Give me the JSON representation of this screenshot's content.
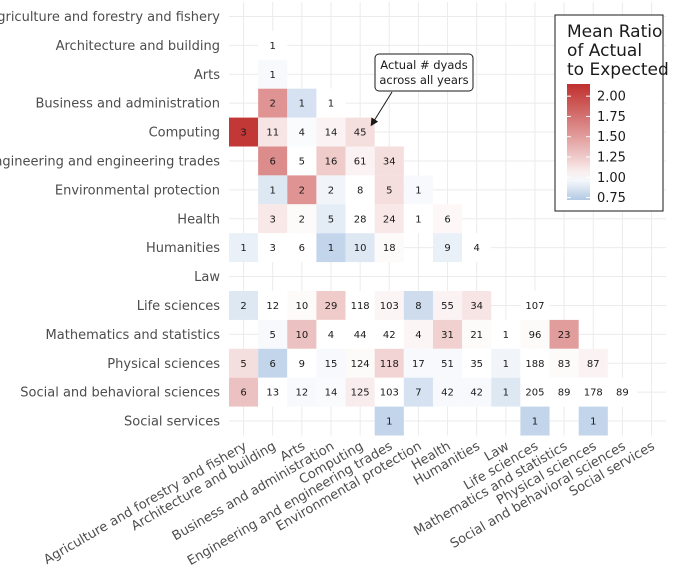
{
  "chart_data": {
    "type": "heatmap",
    "categories": [
      "Agriculture and forestry and fishery",
      "Architecture and building",
      "Arts",
      "Business and administration",
      "Computing",
      "Engineering and engineering trades",
      "Environmental protection",
      "Health",
      "Humanities",
      "Law",
      "Life sciences",
      "Mathematics and statistics",
      "Physical sciences",
      "Social and behavioral sciences",
      "Social services"
    ],
    "cells": [
      {
        "row": "Architecture and building",
        "col": "Architecture and building",
        "count": "1",
        "ratio": 1.0
      },
      {
        "row": "Arts",
        "col": "Architecture and building",
        "count": "1",
        "ratio": 0.97
      },
      {
        "row": "Business and administration",
        "col": "Architecture and building",
        "count": "2",
        "ratio": 1.55
      },
      {
        "row": "Business and administration",
        "col": "Arts",
        "count": "1",
        "ratio": 0.85
      },
      {
        "row": "Business and administration",
        "col": "Business and administration",
        "count": "1",
        "ratio": 1.0
      },
      {
        "row": "Computing",
        "col": "Agriculture and forestry and fishery",
        "count": "3",
        "ratio": 2.1
      },
      {
        "row": "Computing",
        "col": "Architecture and building",
        "count": "11",
        "ratio": 1.12
      },
      {
        "row": "Computing",
        "col": "Arts",
        "count": "4",
        "ratio": 0.98
      },
      {
        "row": "Computing",
        "col": "Business and administration",
        "count": "14",
        "ratio": 1.05
      },
      {
        "row": "Computing",
        "col": "Computing",
        "count": "45",
        "ratio": 1.15
      },
      {
        "row": "Engineering and engineering trades",
        "col": "Architecture and building",
        "count": "6",
        "ratio": 1.6
      },
      {
        "row": "Engineering and engineering trades",
        "col": "Arts",
        "count": "5",
        "ratio": 1.0
      },
      {
        "row": "Engineering and engineering trades",
        "col": "Business and administration",
        "count": "16",
        "ratio": 1.25
      },
      {
        "row": "Engineering and engineering trades",
        "col": "Computing",
        "count": "61",
        "ratio": 1.05
      },
      {
        "row": "Engineering and engineering trades",
        "col": "Engineering and engineering trades",
        "count": "34",
        "ratio": 1.15
      },
      {
        "row": "Environmental protection",
        "col": "Architecture and building",
        "count": "1",
        "ratio": 0.88
      },
      {
        "row": "Environmental protection",
        "col": "Arts",
        "count": "2",
        "ratio": 1.55
      },
      {
        "row": "Environmental protection",
        "col": "Business and administration",
        "count": "2",
        "ratio": 0.95
      },
      {
        "row": "Environmental protection",
        "col": "Computing",
        "count": "8",
        "ratio": 1.0
      },
      {
        "row": "Environmental protection",
        "col": "Engineering and engineering trades",
        "count": "5",
        "ratio": 1.15
      },
      {
        "row": "Environmental protection",
        "col": "Environmental protection",
        "count": "1",
        "ratio": 0.97
      },
      {
        "row": "Health",
        "col": "Architecture and building",
        "count": "3",
        "ratio": 1.1
      },
      {
        "row": "Health",
        "col": "Arts",
        "count": "2",
        "ratio": 1.02
      },
      {
        "row": "Health",
        "col": "Business and administration",
        "count": "5",
        "ratio": 0.9
      },
      {
        "row": "Health",
        "col": "Computing",
        "count": "28",
        "ratio": 1.0
      },
      {
        "row": "Health",
        "col": "Engineering and engineering trades",
        "count": "24",
        "ratio": 1.1
      },
      {
        "row": "Health",
        "col": "Environmental protection",
        "count": "1",
        "ratio": 1.0
      },
      {
        "row": "Health",
        "col": "Health",
        "count": "6",
        "ratio": 1.03
      },
      {
        "row": "Humanities",
        "col": "Agriculture and forestry and fishery",
        "count": "1",
        "ratio": 0.92
      },
      {
        "row": "Humanities",
        "col": "Architecture and building",
        "count": "3",
        "ratio": 1.0
      },
      {
        "row": "Humanities",
        "col": "Arts",
        "count": "6",
        "ratio": 1.0
      },
      {
        "row": "Humanities",
        "col": "Business and administration",
        "count": "1",
        "ratio": 0.78
      },
      {
        "row": "Humanities",
        "col": "Computing",
        "count": "10",
        "ratio": 0.88
      },
      {
        "row": "Humanities",
        "col": "Engineering and engineering trades",
        "count": "18",
        "ratio": 1.02
      },
      {
        "row": "Humanities",
        "col": "Health",
        "count": "9",
        "ratio": 0.92
      },
      {
        "row": "Humanities",
        "col": "Humanities",
        "count": "4",
        "ratio": 1.0
      },
      {
        "row": "Life sciences",
        "col": "Agriculture and forestry and fishery",
        "count": "2",
        "ratio": 0.88
      },
      {
        "row": "Life sciences",
        "col": "Architecture and building",
        "count": "12",
        "ratio": 1.0
      },
      {
        "row": "Life sciences",
        "col": "Arts",
        "count": "10",
        "ratio": 1.02
      },
      {
        "row": "Life sciences",
        "col": "Business and administration",
        "count": "29",
        "ratio": 1.25
      },
      {
        "row": "Life sciences",
        "col": "Computing",
        "count": "118",
        "ratio": 1.0
      },
      {
        "row": "Life sciences",
        "col": "Engineering and engineering trades",
        "count": "103",
        "ratio": 1.04
      },
      {
        "row": "Life sciences",
        "col": "Environmental protection",
        "count": "8",
        "ratio": 0.82
      },
      {
        "row": "Life sciences",
        "col": "Health",
        "count": "55",
        "ratio": 1.05
      },
      {
        "row": "Life sciences",
        "col": "Humanities",
        "count": "34",
        "ratio": 1.12
      },
      {
        "row": "Life sciences",
        "col": "Life sciences",
        "count": "107",
        "ratio": 1.0
      },
      {
        "row": "Mathematics and statistics",
        "col": "Architecture and building",
        "count": "5",
        "ratio": 0.97
      },
      {
        "row": "Mathematics and statistics",
        "col": "Arts",
        "count": "10",
        "ratio": 1.3
      },
      {
        "row": "Mathematics and statistics",
        "col": "Business and administration",
        "count": "4",
        "ratio": 1.0
      },
      {
        "row": "Mathematics and statistics",
        "col": "Computing",
        "count": "44",
        "ratio": 1.0
      },
      {
        "row": "Mathematics and statistics",
        "col": "Engineering and engineering trades",
        "count": "42",
        "ratio": 1.0
      },
      {
        "row": "Mathematics and statistics",
        "col": "Environmental protection",
        "count": "4",
        "ratio": 1.04
      },
      {
        "row": "Mathematics and statistics",
        "col": "Health",
        "count": "31",
        "ratio": 1.22
      },
      {
        "row": "Mathematics and statistics",
        "col": "Humanities",
        "count": "21",
        "ratio": 1.02
      },
      {
        "row": "Mathematics and statistics",
        "col": "Law",
        "count": "1",
        "ratio": 1.0
      },
      {
        "row": "Mathematics and statistics",
        "col": "Life sciences",
        "count": "96",
        "ratio": 1.02
      },
      {
        "row": "Mathematics and statistics",
        "col": "Mathematics and statistics",
        "count": "23",
        "ratio": 1.5
      },
      {
        "row": "Physical sciences",
        "col": "Agriculture and forestry and fishery",
        "count": "5",
        "ratio": 1.15
      },
      {
        "row": "Physical sciences",
        "col": "Architecture and building",
        "count": "6",
        "ratio": 0.78
      },
      {
        "row": "Physical sciences",
        "col": "Arts",
        "count": "9",
        "ratio": 1.0
      },
      {
        "row": "Physical sciences",
        "col": "Business and administration",
        "count": "15",
        "ratio": 0.97
      },
      {
        "row": "Physical sciences",
        "col": "Computing",
        "count": "124",
        "ratio": 1.02
      },
      {
        "row": "Physical sciences",
        "col": "Engineering and engineering trades",
        "count": "118",
        "ratio": 1.2
      },
      {
        "row": "Physical sciences",
        "col": "Environmental protection",
        "count": "17",
        "ratio": 0.97
      },
      {
        "row": "Physical sciences",
        "col": "Health",
        "count": "51",
        "ratio": 0.97
      },
      {
        "row": "Physical sciences",
        "col": "Humanities",
        "count": "35",
        "ratio": 1.0
      },
      {
        "row": "Physical sciences",
        "col": "Law",
        "count": "1",
        "ratio": 0.95
      },
      {
        "row": "Physical sciences",
        "col": "Life sciences",
        "count": "188",
        "ratio": 1.0
      },
      {
        "row": "Physical sciences",
        "col": "Mathematics and statistics",
        "count": "83",
        "ratio": 1.02
      },
      {
        "row": "Physical sciences",
        "col": "Physical sciences",
        "count": "87",
        "ratio": 1.05
      },
      {
        "row": "Social and behavioral sciences",
        "col": "Agriculture and forestry and fishery",
        "count": "6",
        "ratio": 1.3
      },
      {
        "row": "Social and behavioral sciences",
        "col": "Architecture and building",
        "count": "13",
        "ratio": 1.0
      },
      {
        "row": "Social and behavioral sciences",
        "col": "Arts",
        "count": "12",
        "ratio": 0.97
      },
      {
        "row": "Social and behavioral sciences",
        "col": "Business and administration",
        "count": "14",
        "ratio": 0.98
      },
      {
        "row": "Social and behavioral sciences",
        "col": "Computing",
        "count": "125",
        "ratio": 1.08
      },
      {
        "row": "Social and behavioral sciences",
        "col": "Engineering and engineering trades",
        "count": "103",
        "ratio": 1.0
      },
      {
        "row": "Social and behavioral sciences",
        "col": "Environmental protection",
        "count": "7",
        "ratio": 0.85
      },
      {
        "row": "Social and behavioral sciences",
        "col": "Health",
        "count": "42",
        "ratio": 0.97
      },
      {
        "row": "Social and behavioral sciences",
        "col": "Humanities",
        "count": "42",
        "ratio": 0.97
      },
      {
        "row": "Social and behavioral sciences",
        "col": "Law",
        "count": "1",
        "ratio": 0.88
      },
      {
        "row": "Social and behavioral sciences",
        "col": "Life sciences",
        "count": "205",
        "ratio": 1.0
      },
      {
        "row": "Social and behavioral sciences",
        "col": "Mathematics and statistics",
        "count": "89",
        "ratio": 1.0
      },
      {
        "row": "Social and behavioral sciences",
        "col": "Physical sciences",
        "count": "178",
        "ratio": 1.0
      },
      {
        "row": "Social and behavioral sciences",
        "col": "Social and behavioral sciences",
        "count": "89",
        "ratio": 1.0
      },
      {
        "row": "Social services",
        "col": "Engineering and engineering trades",
        "count": "1",
        "ratio": 0.78
      },
      {
        "row": "Social services",
        "col": "Life sciences",
        "count": "1",
        "ratio": 0.78
      },
      {
        "row": "Social services",
        "col": "Physical sciences",
        "count": "1",
        "ratio": 0.78
      }
    ],
    "annotation": {
      "line1": "Actual # dyads",
      "line2": "across all years",
      "target_row": "Computing",
      "target_col": "Computing"
    },
    "legend": {
      "title_lines": [
        "Mean Ratio",
        "of Actual",
        "to Expected"
      ],
      "ticks": [
        "2.00",
        "1.75",
        "1.50",
        "1.25",
        "1.00",
        "0.75"
      ],
      "tick_values": [
        2.0,
        1.75,
        1.5,
        1.25,
        1.0,
        0.75
      ],
      "range": [
        0.72,
        2.15
      ],
      "placement": "top-right"
    },
    "colors": {
      "low": "#b2c9e4",
      "mid": "#ffffff",
      "high": "#c0302e",
      "grid": "#ebebeb"
    }
  }
}
